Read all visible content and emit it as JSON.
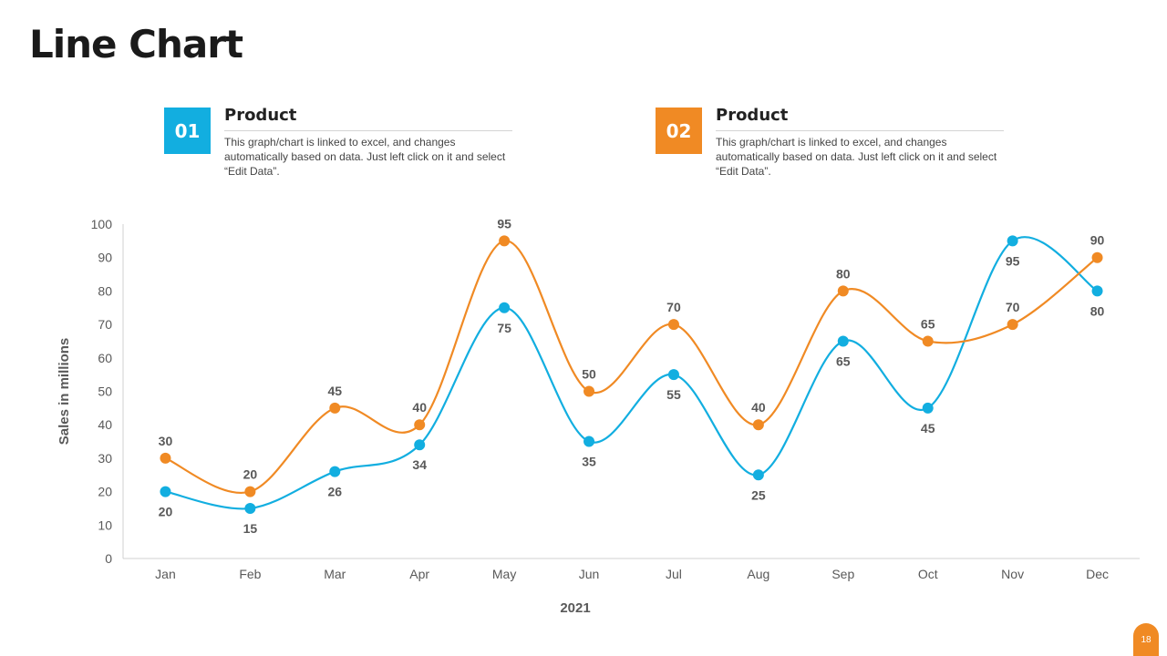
{
  "title": "Line Chart",
  "cards": [
    {
      "number": "01",
      "heading": "Product",
      "text": "This graph/chart is linked to excel, and changes automatically based on data. Just left click on it and select “Edit Data”.",
      "color": "#12aee0"
    },
    {
      "number": "02",
      "heading": "Product",
      "text": "This graph/chart is linked to excel, and changes automatically based on data. Just left click on it and select “Edit Data”.",
      "color": "#f08a24"
    }
  ],
  "page_number": "18",
  "chart_data": {
    "type": "line",
    "title": "",
    "xlabel": "2021",
    "ylabel": "Sales in millions",
    "categories": [
      "Jan",
      "Feb",
      "Mar",
      "Apr",
      "May",
      "Jun",
      "Jul",
      "Aug",
      "Sep",
      "Oct",
      "Nov",
      "Dec"
    ],
    "ylim": [
      0,
      100
    ],
    "yticks": [
      0,
      10,
      20,
      30,
      40,
      50,
      60,
      70,
      80,
      90,
      100
    ],
    "smooth": true,
    "grid": false,
    "series": [
      {
        "name": "Product 01",
        "color": "#12aee0",
        "values": [
          20,
          15,
          26,
          34,
          75,
          35,
          55,
          25,
          65,
          45,
          95,
          80
        ],
        "label_position": "below"
      },
      {
        "name": "Product 02",
        "color": "#f08a24",
        "values": [
          30,
          20,
          45,
          40,
          95,
          50,
          70,
          40,
          80,
          65,
          70,
          90
        ],
        "label_position": "above"
      }
    ]
  }
}
